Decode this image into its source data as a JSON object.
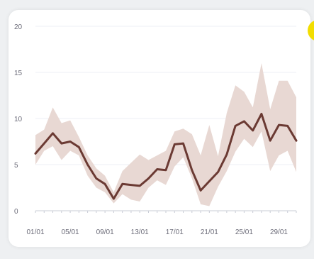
{
  "colors": {
    "line": "#6b3a33",
    "band": "#e8d8d3",
    "grid": "#edeff5",
    "axis": "#c9ccd6",
    "tick_text": "#6b6b78",
    "badge": "#f2dd00"
  },
  "chart_data": {
    "type": "line",
    "title": "",
    "xlabel": "",
    "ylabel": "",
    "ylim": [
      0,
      20
    ],
    "y_ticks": [
      "0",
      "5",
      "10",
      "15",
      "20"
    ],
    "x_tick_labels": [
      "01/01",
      "05/01",
      "09/01",
      "13/01",
      "17/01",
      "21/01",
      "25/01",
      "29/01"
    ],
    "x": [
      "01/01",
      "02/01",
      "03/01",
      "04/01",
      "05/01",
      "06/01",
      "07/01",
      "08/01",
      "09/01",
      "10/01",
      "11/01",
      "12/01",
      "13/01",
      "14/01",
      "15/01",
      "16/01",
      "17/01",
      "18/01",
      "19/01",
      "20/01",
      "21/01",
      "22/01",
      "23/01",
      "24/01",
      "25/01",
      "26/01",
      "27/01",
      "28/01",
      "29/01",
      "30/01",
      "31/01"
    ],
    "grid": true,
    "series": [
      {
        "values": [
          6.2,
          7.3,
          8.4,
          7.3,
          7.5,
          6.9,
          5.0,
          3.5,
          2.9,
          1.3,
          2.9,
          2.8,
          2.7,
          3.5,
          4.5,
          4.4,
          7.2,
          7.3,
          4.4,
          2.2,
          3.2,
          4.2,
          6.1,
          9.2,
          9.7,
          8.7,
          10.5,
          7.6,
          9.3,
          9.2,
          7.6
        ]
      }
    ],
    "band": {
      "lower": [
        5.0,
        6.5,
        7.0,
        5.5,
        6.5,
        6.0,
        3.8,
        2.5,
        2.0,
        0.8,
        1.8,
        1.2,
        1.0,
        2.5,
        3.3,
        2.8,
        4.8,
        5.8,
        3.5,
        0.7,
        0.5,
        2.6,
        4.3,
        6.4,
        7.8,
        6.9,
        8.6,
        4.3,
        6.0,
        6.5,
        4.2
      ],
      "upper": [
        8.2,
        8.8,
        11.2,
        9.5,
        9.8,
        8.0,
        6.0,
        4.6,
        3.8,
        2.0,
        4.3,
        5.2,
        6.1,
        5.5,
        6.0,
        6.5,
        8.6,
        8.9,
        8.3,
        6.0,
        9.3,
        5.9,
        10.6,
        13.6,
        12.9,
        11.2,
        16.0,
        11.0,
        14.1,
        14.1,
        12.3
      ]
    }
  }
}
